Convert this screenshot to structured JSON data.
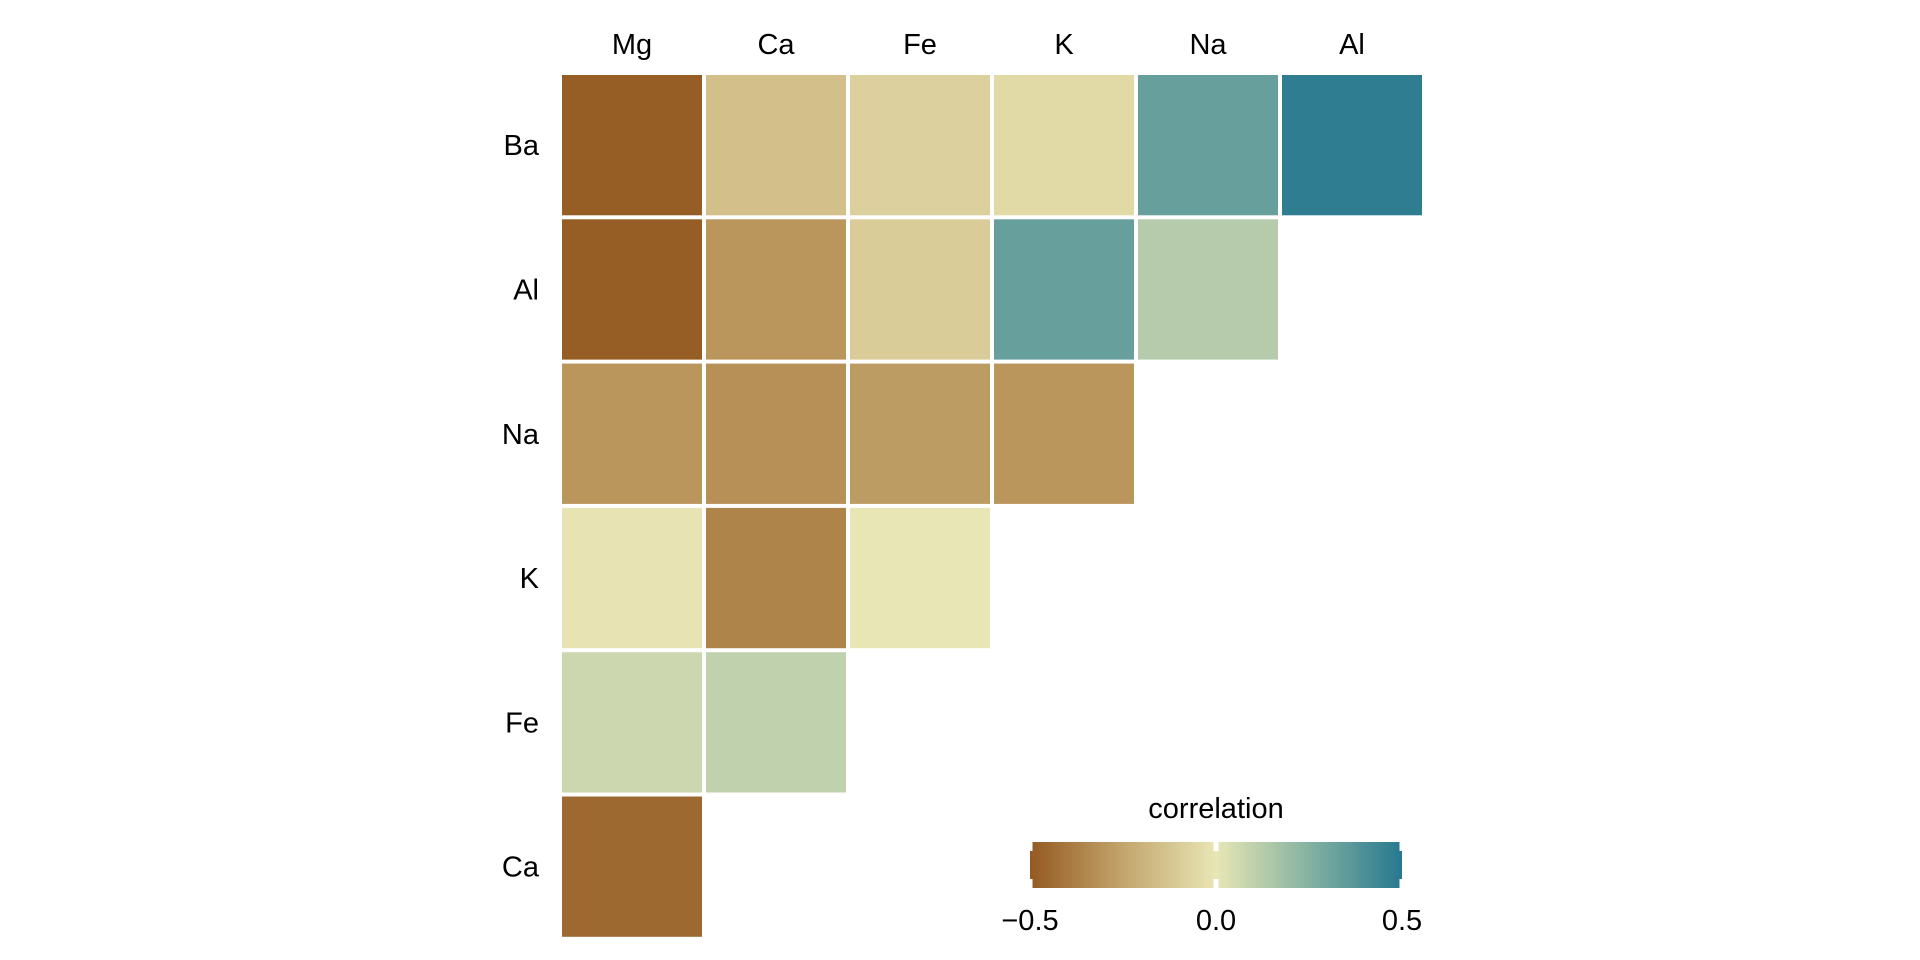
{
  "chart_data": {
    "type": "heatmap",
    "title": "",
    "columns": [
      "Mg",
      "Ca",
      "Fe",
      "K",
      "Na",
      "Al"
    ],
    "rows": [
      "Ba",
      "Al",
      "Na",
      "K",
      "Fe",
      "Ca"
    ],
    "values": [
      [
        -0.49,
        -0.15,
        -0.08,
        -0.05,
        0.33,
        0.48
      ],
      [
        -0.49,
        -0.3,
        -0.1,
        0.33,
        0.13,
        null
      ],
      [
        -0.3,
        -0.32,
        -0.28,
        -0.3,
        null,
        null
      ],
      [
        -0.01,
        -0.36,
        0.0,
        null,
        null,
        null
      ],
      [
        0.07,
        0.1,
        null,
        null,
        null,
        null
      ],
      [
        -0.45,
        null,
        null,
        null,
        null,
        null
      ]
    ],
    "legend": {
      "title": "correlation",
      "ticks": [
        -0.5,
        0.0,
        0.5
      ],
      "tick_labels": [
        "−0.5",
        "0.0",
        "0.5"
      ],
      "range": [
        -0.5,
        0.5
      ],
      "placement": "bottom-right",
      "colors": {
        "low": "#945a22",
        "mid": "#e8e6b5",
        "high": "#267890"
      }
    }
  }
}
